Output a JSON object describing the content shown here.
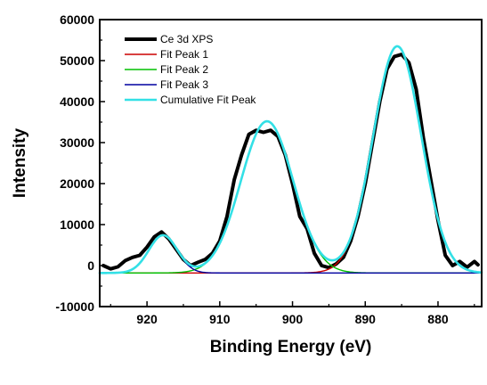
{
  "chart_data": {
    "type": "line",
    "xlabel": "Binding Energy (eV)",
    "ylabel": "Intensity",
    "xlim": [
      926.5,
      874
    ],
    "ylim": [
      -10000,
      60000
    ],
    "x_ticks": [
      920,
      910,
      900,
      890,
      880
    ],
    "y_ticks": [
      -10000,
      0,
      10000,
      20000,
      30000,
      40000,
      50000,
      60000
    ],
    "x_tick_labels": [
      "920",
      "910",
      "900",
      "890",
      "880"
    ],
    "y_tick_labels": [
      "-10000",
      "0",
      "10000",
      "20000",
      "30000",
      "40000",
      "50000",
      "60000"
    ],
    "legend_position": "top-left",
    "series": [
      {
        "name": "Ce 3d XPS",
        "color": "#000000",
        "style": "thick",
        "x": [
          926,
          925,
          924,
          923,
          922,
          921,
          920,
          919,
          918,
          917,
          916,
          915,
          914,
          913,
          912,
          911,
          910,
          909,
          908,
          907,
          906,
          905,
          904,
          903,
          902,
          901,
          900,
          899,
          898,
          897,
          896,
          895,
          894,
          893,
          892,
          891,
          890,
          889,
          888,
          887,
          886,
          885,
          884,
          883,
          882,
          881,
          880,
          879,
          878,
          877,
          876,
          875,
          874.5
        ],
        "y": [
          0,
          -800,
          -300,
          1200,
          2000,
          2500,
          4500,
          7000,
          8200,
          6500,
          4000,
          1500,
          0,
          800,
          1500,
          3000,
          6000,
          12000,
          21000,
          27000,
          32000,
          33000,
          32500,
          33000,
          31500,
          27000,
          20000,
          12000,
          9000,
          3000,
          0,
          -500,
          400,
          2000,
          6000,
          12000,
          20000,
          30000,
          40000,
          48000,
          51000,
          51500,
          49500,
          43000,
          31000,
          21000,
          11000,
          2500,
          0,
          1000,
          -400,
          1000,
          200
        ]
      },
      {
        "name": "Fit Peak 1",
        "color": "#cc0000",
        "style": "thin",
        "shape": "gaussian",
        "center": 885.6,
        "sigma": 3.3,
        "amplitude": 55300,
        "baseline": -1800
      },
      {
        "name": "Fit Peak 2",
        "color": "#00c000",
        "style": "thin",
        "shape": "gaussian",
        "center": 903.5,
        "sigma": 3.6,
        "amplitude": 37000,
        "baseline": -1800
      },
      {
        "name": "Fit Peak 3",
        "color": "#0000a0",
        "style": "thin",
        "shape": "gaussian",
        "center": 917.8,
        "sigma": 1.95,
        "amplitude": 9200,
        "baseline": -1800
      },
      {
        "name": "Cumulative Fit Peak",
        "color": "#33e0e6",
        "style": "medium",
        "shape": "sum_of_fits",
        "baseline": -1800
      }
    ]
  }
}
